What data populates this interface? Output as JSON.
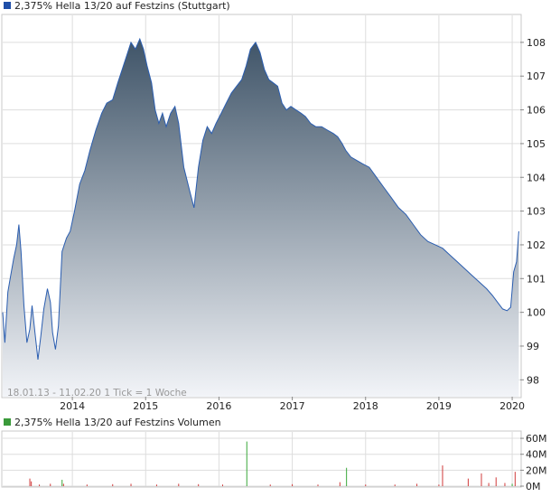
{
  "colors": {
    "price_line": "#2a5db0",
    "fill_top": "#3f5468",
    "fill_bottom": "#f2f4f8",
    "grid": "#dddddd",
    "frame": "#c8c8c8",
    "text": "#222222",
    "info_text": "#999999",
    "legend_price": "#1f4fa8",
    "legend_volume": "#3a9a3a",
    "vol_up": "#3aa83a",
    "vol_down": "#d03a3a"
  },
  "chart_data": [
    {
      "type": "area",
      "title": "2,375% Hella 13/20 auf Festzins (Stuttgart)",
      "info": "18.01.13 - 11.02.20   1 Tick = 1 Woche",
      "x_ticks": [
        {
          "label": "2014",
          "x": 2014.0
        },
        {
          "label": "2015",
          "x": 2015.0
        },
        {
          "label": "2016",
          "x": 2016.0
        },
        {
          "label": "2017",
          "x": 2017.0
        },
        {
          "label": "2018",
          "x": 2018.0
        },
        {
          "label": "2019",
          "x": 2019.0
        },
        {
          "label": "2020",
          "x": 2020.0
        }
      ],
      "xlim": [
        2013.05,
        2020.11
      ],
      "y_ticks": [
        98,
        99,
        100,
        101,
        102,
        103,
        104,
        105,
        106,
        107,
        108
      ],
      "ylim": [
        97.5,
        108.8
      ],
      "grid": true,
      "series": [
        {
          "name": "2,375% Hella 13/20 auf Festzins",
          "points": [
            [
              2013.05,
              100.0
            ],
            [
              2013.08,
              99.1
            ],
            [
              2013.12,
              100.6
            ],
            [
              2013.16,
              101.1
            ],
            [
              2013.2,
              101.6
            ],
            [
              2013.24,
              102.0
            ],
            [
              2013.27,
              102.6
            ],
            [
              2013.3,
              101.8
            ],
            [
              2013.34,
              100.2
            ],
            [
              2013.38,
              99.1
            ],
            [
              2013.42,
              99.5
            ],
            [
              2013.45,
              100.2
            ],
            [
              2013.49,
              99.4
            ],
            [
              2013.53,
              98.6
            ],
            [
              2013.57,
              99.3
            ],
            [
              2013.61,
              100.1
            ],
            [
              2013.66,
              100.7
            ],
            [
              2013.7,
              100.3
            ],
            [
              2013.73,
              99.4
            ],
            [
              2013.77,
              98.9
            ],
            [
              2013.81,
              99.6
            ],
            [
              2013.86,
              101.8
            ],
            [
              2013.92,
              102.2
            ],
            [
              2013.97,
              102.4
            ],
            [
              2014.03,
              103.0
            ],
            [
              2014.1,
              103.8
            ],
            [
              2014.17,
              104.2
            ],
            [
              2014.24,
              104.8
            ],
            [
              2014.32,
              105.4
            ],
            [
              2014.4,
              105.9
            ],
            [
              2014.47,
              106.2
            ],
            [
              2014.55,
              106.3
            ],
            [
              2014.62,
              106.8
            ],
            [
              2014.68,
              107.2
            ],
            [
              2014.74,
              107.6
            ],
            [
              2014.8,
              108.0
            ],
            [
              2014.86,
              107.8
            ],
            [
              2014.92,
              108.1
            ],
            [
              2014.97,
              107.8
            ],
            [
              2015.02,
              107.3
            ],
            [
              2015.08,
              106.8
            ],
            [
              2015.13,
              106.0
            ],
            [
              2015.18,
              105.6
            ],
            [
              2015.23,
              105.9
            ],
            [
              2015.28,
              105.5
            ],
            [
              2015.34,
              105.9
            ],
            [
              2015.4,
              106.1
            ],
            [
              2015.45,
              105.6
            ],
            [
              2015.52,
              104.3
            ],
            [
              2015.6,
              103.6
            ],
            [
              2015.66,
              103.1
            ],
            [
              2015.72,
              104.3
            ],
            [
              2015.78,
              105.1
            ],
            [
              2015.84,
              105.5
            ],
            [
              2015.9,
              105.3
            ],
            [
              2015.96,
              105.6
            ],
            [
              2016.03,
              105.9
            ],
            [
              2016.1,
              106.2
            ],
            [
              2016.17,
              106.5
            ],
            [
              2016.24,
              106.7
            ],
            [
              2016.31,
              106.9
            ],
            [
              2016.37,
              107.3
            ],
            [
              2016.43,
              107.8
            ],
            [
              2016.5,
              108.0
            ],
            [
              2016.56,
              107.7
            ],
            [
              2016.62,
              107.2
            ],
            [
              2016.68,
              106.9
            ],
            [
              2016.74,
              106.8
            ],
            [
              2016.8,
              106.7
            ],
            [
              2016.86,
              106.2
            ],
            [
              2016.92,
              106.0
            ],
            [
              2016.98,
              106.1
            ],
            [
              2017.05,
              106.0
            ],
            [
              2017.12,
              105.9
            ],
            [
              2017.18,
              105.8
            ],
            [
              2017.25,
              105.6
            ],
            [
              2017.32,
              105.5
            ],
            [
              2017.4,
              105.5
            ],
            [
              2017.48,
              105.4
            ],
            [
              2017.56,
              105.3
            ],
            [
              2017.62,
              105.2
            ],
            [
              2017.68,
              105.0
            ],
            [
              2017.73,
              104.8
            ],
            [
              2017.8,
              104.6
            ],
            [
              2017.88,
              104.5
            ],
            [
              2017.96,
              104.4
            ],
            [
              2018.05,
              104.3
            ],
            [
              2018.15,
              104.0
            ],
            [
              2018.25,
              103.7
            ],
            [
              2018.35,
              103.4
            ],
            [
              2018.45,
              103.1
            ],
            [
              2018.55,
              102.9
            ],
            [
              2018.65,
              102.6
            ],
            [
              2018.75,
              102.3
            ],
            [
              2018.85,
              102.1
            ],
            [
              2018.95,
              102.0
            ],
            [
              2019.05,
              101.9
            ],
            [
              2019.15,
              101.7
            ],
            [
              2019.25,
              101.5
            ],
            [
              2019.35,
              101.3
            ],
            [
              2019.45,
              101.1
            ],
            [
              2019.55,
              100.9
            ],
            [
              2019.65,
              100.7
            ],
            [
              2019.73,
              100.5
            ],
            [
              2019.8,
              100.3
            ],
            [
              2019.87,
              100.1
            ],
            [
              2019.93,
              100.05
            ],
            [
              2019.98,
              100.15
            ],
            [
              2020.02,
              101.2
            ],
            [
              2020.06,
              101.5
            ],
            [
              2020.09,
              102.4
            ]
          ]
        }
      ]
    },
    {
      "type": "bar",
      "title": "2,375% Hella 13/20 auf Festzins Volumen",
      "y_ticks": [
        {
          "label": "0M",
          "value": 0
        },
        {
          "label": "20M",
          "value": 20
        },
        {
          "label": "40M",
          "value": 40
        },
        {
          "label": "60M",
          "value": 60
        }
      ],
      "ylim": [
        0,
        68
      ],
      "xlim": [
        2013.05,
        2020.11
      ],
      "volume_unit": "M",
      "series": [
        {
          "name": "Volumen",
          "bars": [
            {
              "x": 2013.42,
              "v": 9.5,
              "up": false
            },
            {
              "x": 2013.44,
              "v": 6.0,
              "up": false
            },
            {
              "x": 2013.55,
              "v": 2.0,
              "up": false
            },
            {
              "x": 2013.7,
              "v": 3.0,
              "up": false
            },
            {
              "x": 2013.86,
              "v": 8.0,
              "up": true
            },
            {
              "x": 2013.88,
              "v": 3.0,
              "up": false
            },
            {
              "x": 2014.2,
              "v": 2.0,
              "up": false
            },
            {
              "x": 2014.55,
              "v": 2.5,
              "up": false
            },
            {
              "x": 2014.8,
              "v": 3.0,
              "up": false
            },
            {
              "x": 2015.15,
              "v": 2.0,
              "up": false
            },
            {
              "x": 2015.45,
              "v": 3.0,
              "up": false
            },
            {
              "x": 2015.72,
              "v": 2.5,
              "up": false
            },
            {
              "x": 2016.05,
              "v": 2.0,
              "up": false
            },
            {
              "x": 2016.38,
              "v": 56.0,
              "up": true
            },
            {
              "x": 2016.7,
              "v": 2.0,
              "up": false
            },
            {
              "x": 2017.0,
              "v": 2.5,
              "up": false
            },
            {
              "x": 2017.35,
              "v": 2.0,
              "up": false
            },
            {
              "x": 2017.65,
              "v": 5.0,
              "up": false
            },
            {
              "x": 2017.74,
              "v": 23.0,
              "up": true
            },
            {
              "x": 2018.0,
              "v": 2.0,
              "up": false
            },
            {
              "x": 2018.4,
              "v": 2.0,
              "up": false
            },
            {
              "x": 2018.7,
              "v": 3.0,
              "up": false
            },
            {
              "x": 2019.0,
              "v": 2.0,
              "up": false
            },
            {
              "x": 2019.05,
              "v": 26.0,
              "up": false
            },
            {
              "x": 2019.4,
              "v": 9.5,
              "up": false
            },
            {
              "x": 2019.58,
              "v": 16.0,
              "up": false
            },
            {
              "x": 2019.68,
              "v": 4.0,
              "up": false
            },
            {
              "x": 2019.78,
              "v": 11.0,
              "up": false
            },
            {
              "x": 2019.9,
              "v": 4.0,
              "up": false
            },
            {
              "x": 2020.0,
              "v": 3.0,
              "up": true
            },
            {
              "x": 2020.04,
              "v": 18.0,
              "up": false
            }
          ]
        }
      ]
    }
  ]
}
